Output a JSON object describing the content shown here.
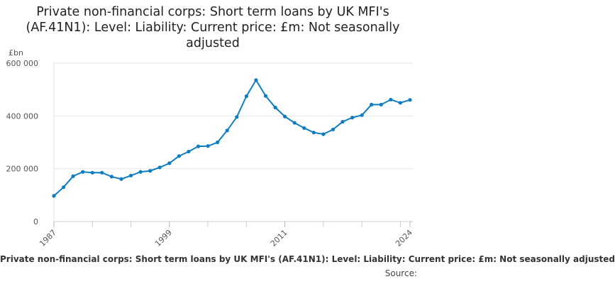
{
  "chart_data": {
    "type": "line",
    "title": "Private non-financial corps: Short term loans by UK MFI's (AF.41N1): Level: Liability: Current price: £m: Not seasonally adjusted",
    "footer": "Private non-financial corps: Short term loans by UK MFI's (AF.41N1): Level: Liability: Current price: £m: Not seasonally adjusted",
    "source": "Source:",
    "ylabel": "£bn",
    "xlabel": "",
    "ylim": [
      0,
      600000
    ],
    "xlim": [
      1987,
      2024
    ],
    "yticks": [
      {
        "value": 0,
        "label": "0"
      },
      {
        "value": 200000,
        "label": "200 000"
      },
      {
        "value": 400000,
        "label": "400 000"
      },
      {
        "value": 600000,
        "label": "600 000"
      }
    ],
    "xticks": [
      {
        "value": 1987,
        "label": "1987"
      },
      {
        "value": 1999,
        "label": "1999"
      },
      {
        "value": 2011,
        "label": "2011"
      },
      {
        "value": 2024,
        "label": "2024"
      }
    ],
    "grid": true,
    "color": "#0f7dc0",
    "series": [
      {
        "x": [
          1987,
          1988,
          1989,
          1990,
          1991,
          1992,
          1993,
          1994,
          1995,
          1996,
          1997,
          1998,
          1999,
          2000,
          2001,
          2002,
          2003,
          2004,
          2005,
          2006,
          2007,
          2008,
          2009,
          2010,
          2011,
          2012,
          2013,
          2014,
          2015,
          2016,
          2017,
          2018,
          2019,
          2020,
          2021,
          2022,
          2023,
          2024
        ],
        "values": [
          97000,
          130000,
          172000,
          188000,
          185000,
          185000,
          170000,
          161000,
          174000,
          188000,
          192000,
          205000,
          221000,
          248000,
          265000,
          285000,
          286000,
          300000,
          345000,
          396000,
          475000,
          536000,
          476000,
          432000,
          398000,
          374000,
          354000,
          337000,
          331000,
          349000,
          378000,
          394000,
          403000,
          443000,
          443000,
          462000,
          450000,
          461000
        ]
      }
    ]
  }
}
